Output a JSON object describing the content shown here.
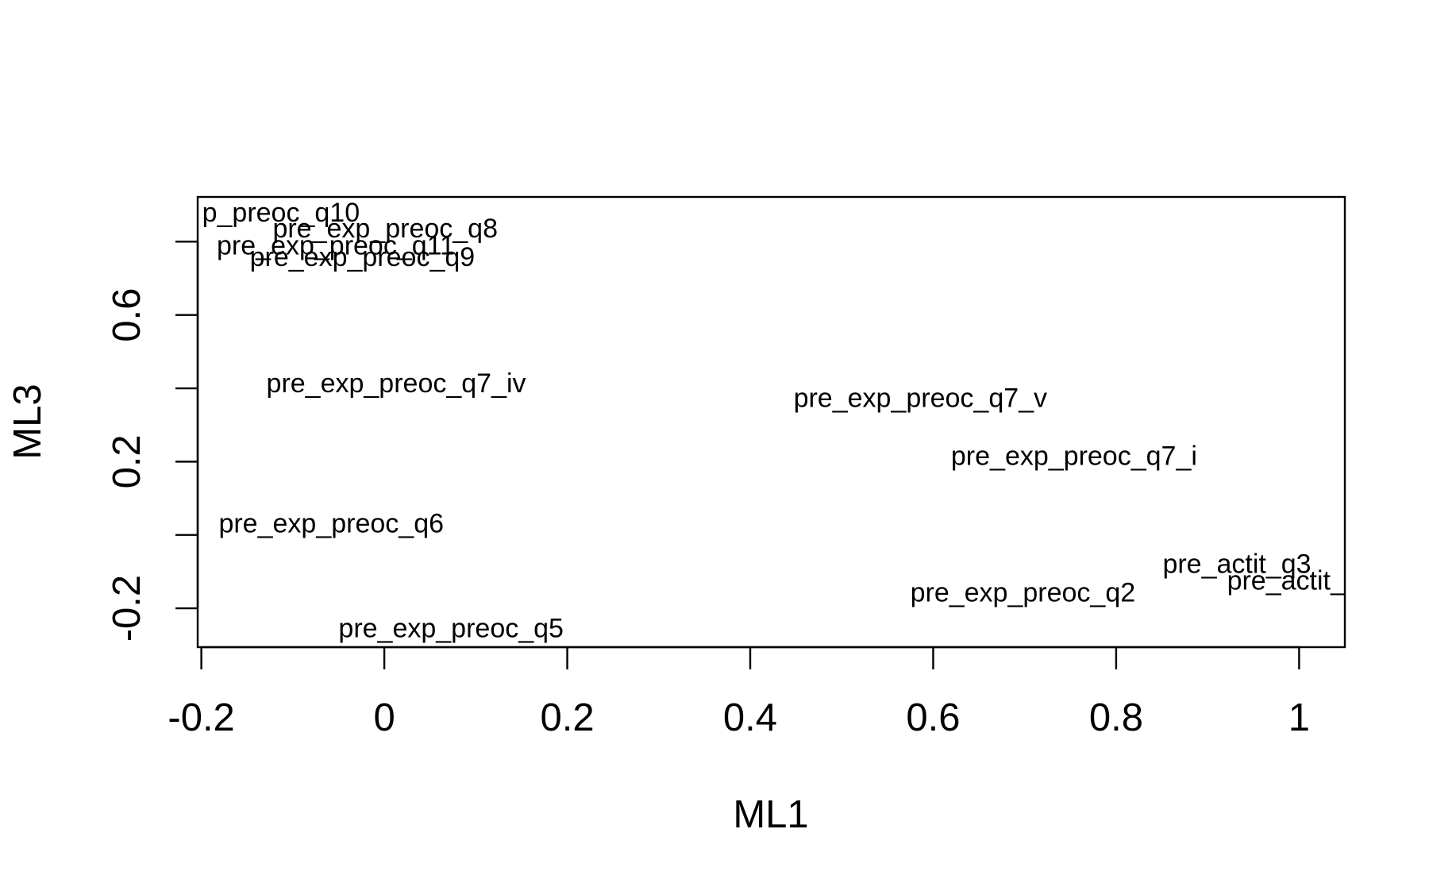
{
  "chart_data": {
    "type": "scatter",
    "xlabel": "ML1",
    "ylabel": "ML3",
    "labels": [
      "p_preoc_q10",
      "pre_exp_preoc_q8",
      "pre_exp_preoc_q11",
      "pre_exp_preoc_q9",
      "pre_exp_preoc_q7_iv",
      "pre_exp_preoc_q7_v",
      "pre_exp_preoc_q7_i",
      "pre_exp_preoc_q6",
      "pre_actit_q3",
      "pre_actit_",
      "pre_exp_preoc_q2",
      "pre_exp_preoc_q5"
    ],
    "x": [
      -0.113,
      0.001,
      -0.053,
      -0.024,
      0.013,
      0.586,
      0.754,
      -0.058,
      0.932,
      0.986,
      0.698,
      0.073
    ],
    "y": [
      0.874,
      0.831,
      0.784,
      0.753,
      0.409,
      0.369,
      0.21,
      0.026,
      -0.084,
      -0.13,
      -0.162,
      -0.26
    ],
    "color": "#000000",
    "xlim": [
      -0.204,
      1.05
    ],
    "ylim": [
      -0.306,
      0.922
    ],
    "xticks": [
      -0.2,
      0.0,
      0.2,
      0.4,
      0.6,
      0.8,
      1.0
    ],
    "yticks": [
      -0.2,
      {
        "value": 0,
        "label": null
      },
      0.2,
      {
        "value": 0.4,
        "label": null
      },
      0.6,
      {
        "value": 0.8,
        "label": null
      }
    ]
  }
}
